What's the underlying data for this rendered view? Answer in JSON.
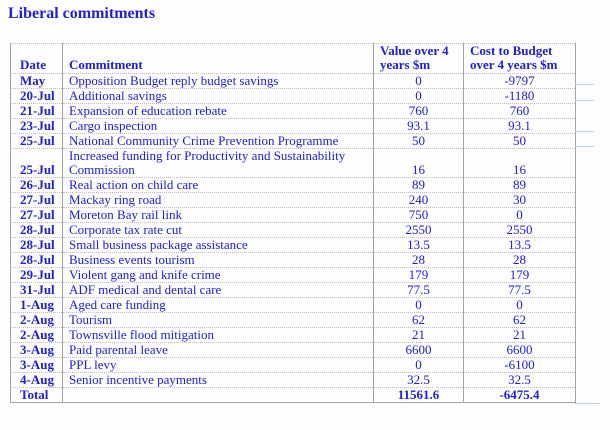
{
  "page": {
    "title": "Liberal commitments"
  },
  "colors": {
    "text_blue": "#2020cf",
    "border_solid": "#a3a3a3",
    "border_dotted": "#bdbdbd",
    "stray_line_blue": "#b9d9f0"
  },
  "table": {
    "headers": {
      "date": "Date",
      "commitment": "Commitment",
      "value": "Value over 4 years $m",
      "cost": "Cost to Budget over 4 years $m"
    },
    "rows": [
      {
        "date": "May",
        "commitment": "Opposition Budget reply budget savings",
        "value": "0",
        "cost": "-9797"
      },
      {
        "date": "20-Jul",
        "commitment": "Additional savings",
        "value": "0",
        "cost": "-1180"
      },
      {
        "date": "21-Jul",
        "commitment": "Expansion of education rebate",
        "value": "760",
        "cost": "760"
      },
      {
        "date": "23-Jul",
        "commitment": "Cargo inspection",
        "value": "93.1",
        "cost": "93.1"
      },
      {
        "date": "25-Jul",
        "commitment": "National Community Crime Prevention Programme",
        "value": "50",
        "cost": "50"
      },
      {
        "date": "25-Jul",
        "commitment": "Increased funding for Productivity and Sustainability Commission",
        "value": "16",
        "cost": "16"
      },
      {
        "date": "26-Jul",
        "commitment": "Real action on child care",
        "value": "89",
        "cost": "89"
      },
      {
        "date": "27-Jul",
        "commitment": "Mackay ring road",
        "value": "240",
        "cost": "30"
      },
      {
        "date": "27-Jul",
        "commitment": "Moreton Bay rail link",
        "value": "750",
        "cost": "0"
      },
      {
        "date": "28-Jul",
        "commitment": "Corporate tax rate cut",
        "value": "2550",
        "cost": "2550"
      },
      {
        "date": "28-Jul",
        "commitment": "Small business package assistance",
        "value": "13.5",
        "cost": "13.5"
      },
      {
        "date": "28-Jul",
        "commitment": "Business events tourism",
        "value": "28",
        "cost": "28"
      },
      {
        "date": "29-Jul",
        "commitment": "Violent gang and knife crime",
        "value": "179",
        "cost": "179"
      },
      {
        "date": "31-Jul",
        "commitment": "ADF medical and dental care",
        "value": "77.5",
        "cost": "77.5"
      },
      {
        "date": "1-Aug",
        "commitment": "Aged care funding",
        "value": "0",
        "cost": "0"
      },
      {
        "date": "2-Aug",
        "commitment": "Tourism",
        "value": "62",
        "cost": "62"
      },
      {
        "date": "2-Aug",
        "commitment": "Townsville flood mitigation",
        "value": "21",
        "cost": "21"
      },
      {
        "date": "3-Aug",
        "commitment": "Paid parental leave",
        "value": "6600",
        "cost": "6600"
      },
      {
        "date": "3-Aug",
        "commitment": "PPL levy",
        "value": "0",
        "cost": "-6100"
      },
      {
        "date": "4-Aug",
        "commitment": "Senior incentive payments",
        "value": "32.5",
        "cost": "32.5"
      }
    ],
    "total": {
      "label": "Total",
      "commitment": "",
      "value": "11561.6",
      "cost": "-6475.4"
    }
  }
}
